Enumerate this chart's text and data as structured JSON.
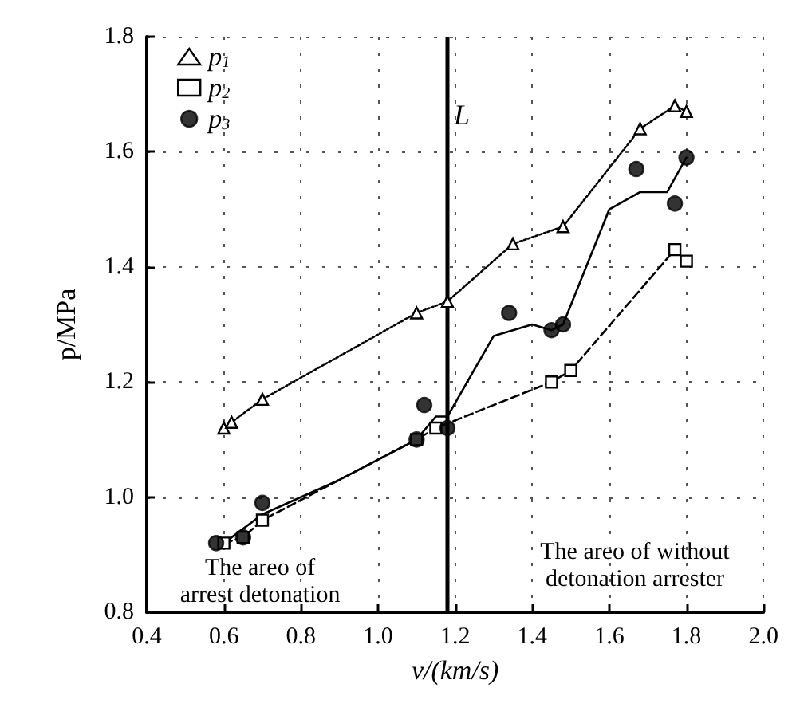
{
  "chart_data": {
    "type": "line",
    "xlabel": "v/(km/s)",
    "ylabel": "p/MPa",
    "xlim": [
      0.4,
      2.0
    ],
    "ylim": [
      0.8,
      1.8
    ],
    "xticks": [
      0.4,
      0.6,
      0.8,
      {
        "value": 1,
        "label": "1.0"
      },
      1.2,
      1.4,
      1.6,
      1.8,
      {
        "value": 2,
        "label": "2.0"
      }
    ],
    "yticks": [
      0.8,
      {
        "value": 1,
        "label": "1.0"
      },
      1.2,
      1.4,
      1.6,
      1.8
    ],
    "grid": true,
    "legend": "top left",
    "series": [
      {
        "name": "p$_{1}$",
        "color": "#000000",
        "marker": "triangle",
        "line_style": "dotted",
        "x": [
          0.6,
          0.62,
          0.7,
          1.1,
          1.18,
          1.35,
          1.48,
          1.68,
          1.77,
          1.8
        ],
        "values": [
          1.12,
          1.13,
          1.17,
          1.32,
          1.34,
          1.44,
          1.47,
          1.64,
          1.68,
          1.67
        ]
      },
      {
        "name": "p$_{2}$",
        "color": "#000000",
        "marker": "square",
        "line_style": "dashed",
        "x": [
          0.6,
          0.65,
          0.7,
          1.1,
          1.15,
          1.45,
          1.5,
          1.77,
          1.8
        ],
        "values": [
          0.92,
          0.93,
          0.96,
          1.1,
          1.12,
          1.2,
          1.22,
          1.43,
          1.41
        ]
      },
      {
        "name": "p$_{3}$",
        "type": "scatter",
        "color": "#000000",
        "marker": "circle",
        "x": [
          0.58,
          0.65,
          0.7,
          1.1,
          1.12,
          1.18,
          1.34,
          1.45,
          1.48,
          1.67,
          1.77,
          1.8
        ],
        "values": [
          0.92,
          0.93,
          0.99,
          1.1,
          1.16,
          1.12,
          1.32,
          1.29,
          1.3,
          1.57,
          1.51,
          1.59
        ]
      },
      {
        "type": "line",
        "color": "#000000",
        "marker": "none",
        "line_style": "solid",
        "x": [
          0.6,
          0.7,
          0.9,
          1.1,
          1.15,
          1.18,
          1.3,
          1.4,
          1.45,
          1.48,
          1.6,
          1.68,
          1.75,
          1.8
        ],
        "values": [
          0.92,
          0.97,
          1.03,
          1.1,
          1.14,
          1.14,
          1.28,
          1.3,
          1.29,
          1.3,
          1.5,
          1.53,
          1.53,
          1.59
        ]
      }
    ],
    "ref_lines": [
      {
        "axis": "x",
        "value": 1.18,
        "label": "L",
        "color": "#000000",
        "line_style": "solid"
      }
    ],
    "annotations": [
      "The areo of\narrest detonation",
      "The areo of without\ndetonation arrester"
    ]
  }
}
